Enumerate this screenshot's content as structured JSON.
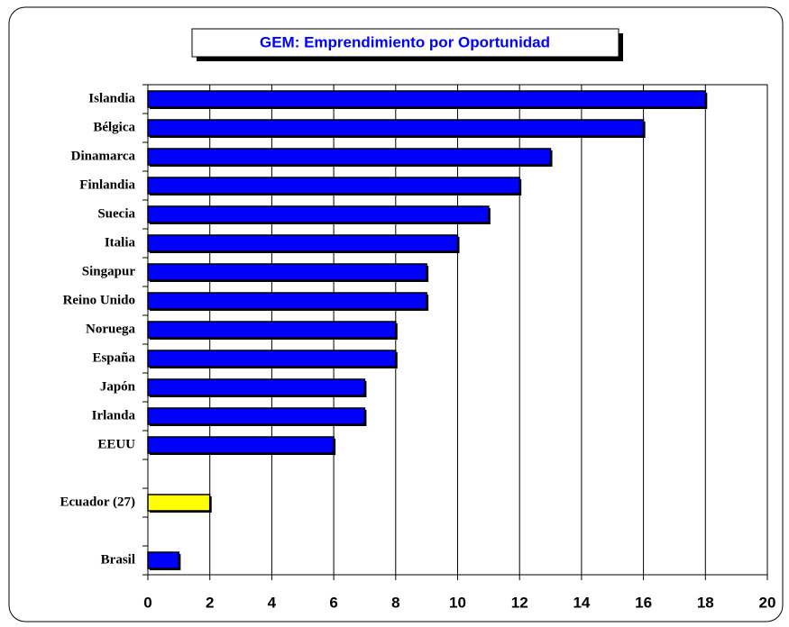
{
  "chart_data": {
    "type": "bar",
    "orientation": "horizontal",
    "title": "GEM: Emprendimiento por Oportunidad",
    "categories": [
      "Islandia",
      "Bélgica",
      "Dinamarca",
      "Finlandia",
      "Suecia",
      "Italia",
      "Singapur",
      "Reino Unido",
      "Noruega",
      "España",
      "Japón",
      "Irlanda",
      "EEUU",
      null,
      "Ecuador (27)",
      null,
      "Brasil"
    ],
    "values": [
      18,
      16,
      13,
      12,
      11,
      10,
      9,
      9,
      8,
      8,
      7,
      7,
      6,
      null,
      2,
      null,
      1
    ],
    "colors": [
      "#0000ff",
      "#0000ff",
      "#0000ff",
      "#0000ff",
      "#0000ff",
      "#0000ff",
      "#0000ff",
      "#0000ff",
      "#0000ff",
      "#0000ff",
      "#0000ff",
      "#0000ff",
      "#0000ff",
      null,
      "#ffff00",
      null,
      "#0000ff"
    ],
    "xlim": [
      0,
      20
    ],
    "xticks": [
      0,
      2,
      4,
      6,
      8,
      10,
      12,
      14,
      16,
      18,
      20
    ],
    "grid": true
  }
}
